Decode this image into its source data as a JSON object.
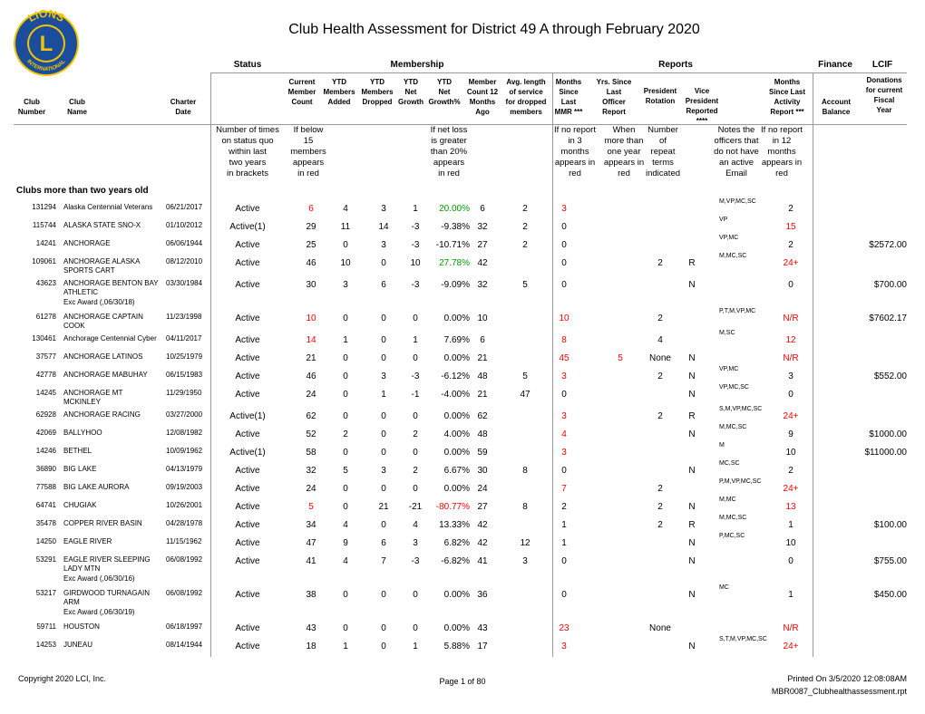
{
  "logo": {
    "top": "LIONS",
    "bottom": "INTERNATIONAL",
    "letter": "L"
  },
  "title": "Club Health Assessment for District 49 A through February 2020",
  "groups": [
    "Status",
    "Membership",
    "Reports",
    "Finance",
    "LCIF"
  ],
  "columns": [
    [
      "Club",
      "Number"
    ],
    [
      "Club",
      "Name"
    ],
    [
      "Charter",
      "Date"
    ],
    [
      "Current",
      "Member",
      "Count"
    ],
    [
      "YTD",
      "Members",
      "Added"
    ],
    [
      "YTD",
      "Members",
      "Dropped"
    ],
    [
      "YTD",
      "Net",
      "Growth"
    ],
    [
      "YTD",
      "Net",
      "Growth%"
    ],
    [
      "Member",
      "Count 12",
      "Months",
      "Ago"
    ],
    [
      "Avg. length",
      "of service",
      "for dropped",
      "members"
    ],
    [
      "Months",
      "Since",
      "Last",
      "MMR ***"
    ],
    [
      "Yrs. Since",
      "Last",
      "Officer",
      "Report"
    ],
    [
      "President",
      "Rotation"
    ],
    [
      "Vice",
      "President",
      "Reported",
      "****"
    ],
    [
      "Months",
      "Since Last",
      "Activity",
      "Report ***"
    ],
    [
      "Account",
      "Balance"
    ],
    [
      "Donations",
      "for current",
      "Fiscal",
      "Year"
    ]
  ],
  "notes": [
    [
      "Number of times",
      "on status quo",
      "within last",
      "two years",
      "in brackets"
    ],
    [
      "If below",
      "15",
      "members",
      "appears",
      "in red"
    ],
    [
      "If net loss",
      "is greater",
      "than 20%",
      "appears",
      "in red"
    ],
    [
      "If no report",
      "in 3",
      "months",
      "appears in",
      "red"
    ],
    [
      "When",
      "more than",
      "one year",
      "appears in",
      "red"
    ],
    [
      "Number",
      "of",
      "repeat",
      "terms",
      "indicated"
    ],
    [
      "Notes the",
      "officers that",
      "do not have",
      "an active",
      "Email"
    ],
    [
      "If no report",
      "in 12",
      "months",
      "appears in",
      "red"
    ]
  ],
  "section": "Clubs more than two years old",
  "rows": [
    {
      "id": 131294,
      "name": "Alaska Centennial Veterans",
      "date": "06/21/2017",
      "status": "Active",
      "cur": 6,
      "add": 4,
      "drop": 3,
      "net": 1,
      "pct": "20.00%",
      "m12": 6,
      "avg": 2,
      "mmr": 3,
      "off": "M,VP,MC,SC",
      "act": "2",
      "colors": {
        "cur": "#ff0000",
        "pct": "#009900",
        "mmr": "#ff0000"
      }
    },
    {
      "id": 115744,
      "name": "ALASKA STATE SNO-X",
      "date": "01/10/2012",
      "status": "Active(1)",
      "cur": 29,
      "add": 11,
      "drop": 14,
      "net": -3,
      "pct": "-9.38%",
      "m12": 32,
      "avg": 2,
      "mmr": 0,
      "off": "VP",
      "act": "15",
      "colors": {
        "act": "#ff0000"
      }
    },
    {
      "id": 14241,
      "name": "ANCHORAGE",
      "date": "06/06/1944",
      "status": "Active",
      "cur": 25,
      "add": 0,
      "drop": 3,
      "net": -3,
      "pct": "-10.71%",
      "m12": 27,
      "avg": 2,
      "mmr": 0,
      "off": "VP,MC",
      "act": "2",
      "don": "$2572.00"
    },
    {
      "id": 109061,
      "name": "ANCHORAGE ALASKA SPORTS CART",
      "date": "08/12/2010",
      "status": "Active",
      "cur": 46,
      "add": 10,
      "drop": 0,
      "net": 10,
      "pct": "27.78%",
      "m12": 42,
      "mmr": 0,
      "pres": "2",
      "vp": "R",
      "off": "M,MC,SC",
      "act": "24+",
      "colors": {
        "pct": "#009900",
        "act": "#ff0000"
      }
    },
    {
      "id": 43623,
      "name": "ANCHORAGE BENTON BAY ATHLETIC",
      "date": "03/30/1984",
      "status": "Active",
      "cur": 30,
      "add": 3,
      "drop": 6,
      "net": -3,
      "pct": "-9.09%",
      "m12": 32,
      "avg": 5,
      "mmr": 0,
      "vp": "N",
      "act": "0",
      "don": "$700.00",
      "award": "Exc Award (,06/30/18)"
    },
    {
      "id": 61278,
      "name": "ANCHORAGE CAPTAIN COOK",
      "date": "11/23/1998",
      "status": "Active",
      "cur": 10,
      "add": 0,
      "drop": 0,
      "net": 0,
      "pct": "0.00%",
      "m12": 10,
      "mmr": 10,
      "pres": "2",
      "off": "P,T,M,VP,MC",
      "act": "N/R",
      "don": "$7602.17",
      "colors": {
        "cur": "#ff0000",
        "mmr": "#ff0000",
        "act": "#ff0000"
      }
    },
    {
      "id": 130461,
      "name": "Anchorage Centennial Cyber",
      "date": "04/11/2017",
      "status": "Active",
      "cur": 14,
      "add": 1,
      "drop": 0,
      "net": 1,
      "pct": "7.69%",
      "m12": 6,
      "mmr": 8,
      "pres": "4",
      "off": "M,SC",
      "act": "12",
      "colors": {
        "cur": "#ff0000",
        "mmr": "#ff0000",
        "act": "#ff0000"
      }
    },
    {
      "id": 37577,
      "name": "ANCHORAGE LATINOS",
      "date": "10/25/1979",
      "status": "Active",
      "cur": 21,
      "add": 0,
      "drop": 0,
      "net": 0,
      "pct": "0.00%",
      "m12": 21,
      "mmr": 45,
      "rpt": 5,
      "pres": "None",
      "vp": "N",
      "act": "N/R",
      "colors": {
        "mmr": "#ff0000",
        "rpt": "#ff0000",
        "act": "#ff0000"
      }
    },
    {
      "id": 42778,
      "name": "ANCHORAGE MABUHAY",
      "date": "06/15/1983",
      "status": "Active",
      "cur": 46,
      "add": 0,
      "drop": 3,
      "net": -3,
      "pct": "-6.12%",
      "m12": 48,
      "avg": 5,
      "mmr": 3,
      "pres": "2",
      "vp": "N",
      "off": "VP,MC",
      "act": "3",
      "don": "$552.00",
      "colors": {
        "mmr": "#ff0000"
      }
    },
    {
      "id": 14245,
      "name": "ANCHORAGE MT MCKINLEY",
      "date": "11/29/1950",
      "status": "Active",
      "cur": 24,
      "add": 0,
      "drop": 1,
      "net": -1,
      "pct": "-4.00%",
      "m12": 21,
      "avg": 47,
      "mmr": 0,
      "vp": "N",
      "off": "VP,MC,SC",
      "act": "0"
    },
    {
      "id": 62928,
      "name": "ANCHORAGE RACING",
      "date": "03/27/2000",
      "status": "Active(1)",
      "cur": 62,
      "add": 0,
      "drop": 0,
      "net": 0,
      "pct": "0.00%",
      "m12": 62,
      "mmr": 3,
      "pres": "2",
      "vp": "R",
      "off": "S,M,VP,MC,SC",
      "act": "24+",
      "colors": {
        "mmr": "#ff0000",
        "act": "#ff0000"
      }
    },
    {
      "id": 42069,
      "name": "BALLYHOO",
      "date": "12/08/1982",
      "status": "Active",
      "cur": 52,
      "add": 2,
      "drop": 0,
      "net": 2,
      "pct": "4.00%",
      "m12": 48,
      "mmr": 4,
      "vp": "N",
      "off": "M,MC,SC",
      "act": "9",
      "don": "$1000.00",
      "colors": {
        "mmr": "#ff0000"
      }
    },
    {
      "id": 14246,
      "name": "BETHEL",
      "date": "10/09/1962",
      "status": "Active(1)",
      "cur": 58,
      "add": 0,
      "drop": 0,
      "net": 0,
      "pct": "0.00%",
      "m12": 59,
      "mmr": 3,
      "off": "M",
      "act": "10",
      "don": "$11000.00",
      "colors": {
        "mmr": "#ff0000"
      }
    },
    {
      "id": 36890,
      "name": "BIG LAKE",
      "date": "04/13/1979",
      "status": "Active",
      "cur": 32,
      "add": 5,
      "drop": 3,
      "net": 2,
      "pct": "6.67%",
      "m12": 30,
      "avg": 8,
      "mmr": 0,
      "vp": "N",
      "off": "MC,SC",
      "act": "2"
    },
    {
      "id": 77588,
      "name": "BIG LAKE AURORA",
      "date": "09/19/2003",
      "status": "Active",
      "cur": 24,
      "add": 0,
      "drop": 0,
      "net": 0,
      "pct": "0.00%",
      "m12": 24,
      "mmr": 7,
      "pres": "2",
      "off": "P,M,VP,MC,SC",
      "act": "24+",
      "colors": {
        "mmr": "#ff0000",
        "act": "#ff0000"
      }
    },
    {
      "id": 64741,
      "name": "CHUGIAK",
      "date": "10/26/2001",
      "status": "Active",
      "cur": 5,
      "add": 0,
      "drop": 21,
      "net": -21,
      "pct": "-80.77%",
      "m12": 27,
      "avg": 8,
      "mmr": 2,
      "pres": "2",
      "vp": "N",
      "off": "M,MC",
      "act": "13",
      "colors": {
        "cur": "#ff0000",
        "pct": "#ff0000",
        "act": "#ff0000"
      }
    },
    {
      "id": 35478,
      "name": "COPPER RIVER BASIN",
      "date": "04/28/1978",
      "status": "Active",
      "cur": 34,
      "add": 4,
      "drop": 0,
      "net": 4,
      "pct": "13.33%",
      "m12": 42,
      "mmr": 1,
      "pres": "2",
      "vp": "R",
      "off": "M,MC,SC",
      "act": "1",
      "don": "$100.00"
    },
    {
      "id": 14250,
      "name": "EAGLE RIVER",
      "date": "11/15/1962",
      "status": "Active",
      "cur": 47,
      "add": 9,
      "drop": 6,
      "net": 3,
      "pct": "6.82%",
      "m12": 42,
      "avg": 12,
      "mmr": 1,
      "vp": "N",
      "off": "P,MC,SC",
      "act": "10"
    },
    {
      "id": 53291,
      "name": "EAGLE RIVER SLEEPING LADY MTN",
      "date": "06/08/1992",
      "status": "Active",
      "cur": 41,
      "add": 4,
      "drop": 7,
      "net": -3,
      "pct": "-6.82%",
      "m12": 41,
      "avg": 3,
      "mmr": 0,
      "vp": "N",
      "act": "0",
      "don": "$755.00",
      "award": "Exc Award (,06/30/16)"
    },
    {
      "id": 53217,
      "name": "GIRDWOOD TURNAGAIN ARM",
      "date": "06/08/1992",
      "status": "Active",
      "cur": 38,
      "add": 0,
      "drop": 0,
      "net": 0,
      "pct": "0.00%",
      "m12": 36,
      "mmr": 0,
      "vp": "N",
      "off": "MC",
      "act": "1",
      "don": "$450.00",
      "award": "Exc Award (,06/30/19)"
    },
    {
      "id": 59711,
      "name": "HOUSTON",
      "date": "06/18/1997",
      "status": "Active",
      "cur": 43,
      "add": 0,
      "drop": 0,
      "net": 0,
      "pct": "0.00%",
      "m12": 43,
      "mmr": 23,
      "pres": "None",
      "act": "N/R",
      "colors": {
        "mmr": "#ff0000",
        "act": "#ff0000"
      }
    },
    {
      "id": 14253,
      "name": "JUNEAU",
      "date": "08/14/1944",
      "status": "Active",
      "cur": 18,
      "add": 1,
      "drop": 0,
      "net": 1,
      "pct": "5.88%",
      "m12": 17,
      "mmr": 3,
      "vp": "N",
      "off": "S,T,M,VP,MC,SC",
      "act": "24+",
      "colors": {
        "mmr": "#ff0000",
        "act": "#ff0000"
      }
    }
  ],
  "footer": {
    "copyright": "Copyright 2020 LCI, Inc.",
    "page": "Page 1 of 80",
    "printed": "Printed On  3/5/2020  12:08:08AM",
    "file": "MBR0087_Clubhealthassessment.rpt"
  }
}
